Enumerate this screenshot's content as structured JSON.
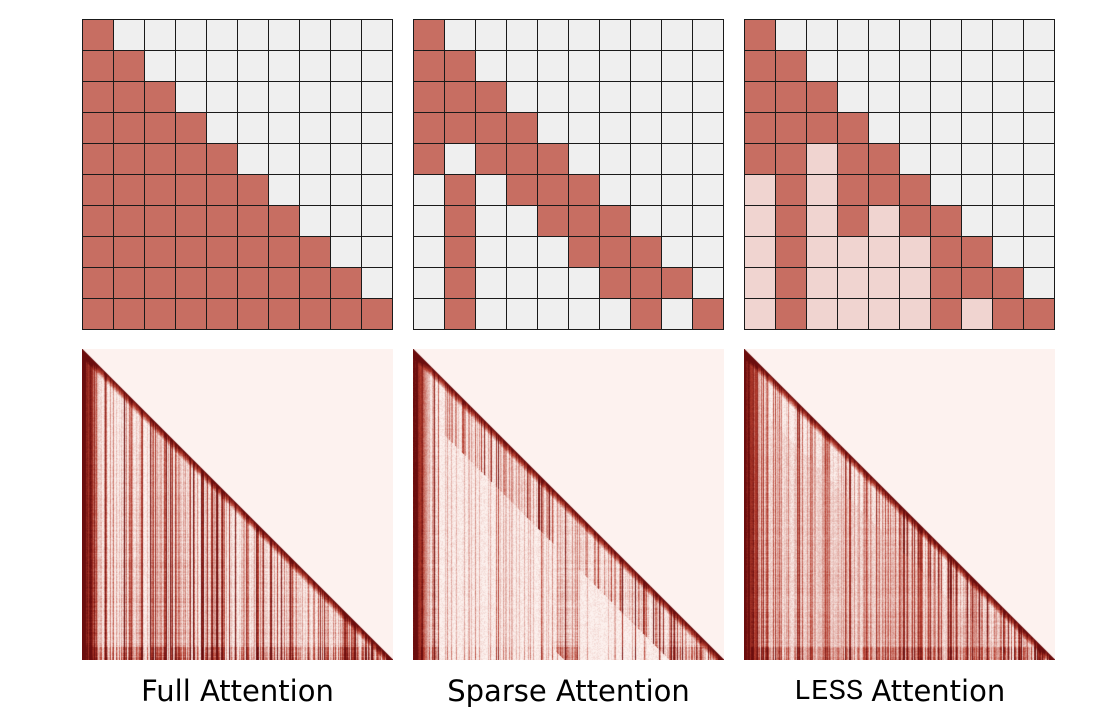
{
  "colors": {
    "active": "#c76e62",
    "partial": "#f0d4d0",
    "empty": "#efefef",
    "grid_line": "#1a1a1a",
    "heat_background": "#fdf2ef",
    "heat_dark": "#6b0d0d"
  },
  "panels": [
    {
      "id": "full",
      "caption_mono": "",
      "caption_text": "Full Attention",
      "grid": [
        "A.........",
        "AA........",
        "AAA.......",
        "AAAA......",
        "AAAAA.....",
        "AAAAAA....",
        "AAAAAAA...",
        "AAAAAAAA..",
        "AAAAAAAAA.",
        "AAAAAAAAAA"
      ]
    },
    {
      "id": "sparse",
      "caption_mono": "",
      "caption_text": "Sparse Attention",
      "grid": [
        "A.........",
        "AA........",
        "AAA.......",
        "AAAA......",
        "A.AAA.....",
        ".A.AAA....",
        ".A..AAA...",
        ".A...AAA..",
        ".A....AAA.",
        ".A.....A.A"
      ]
    },
    {
      "id": "less",
      "caption_mono": "LESS",
      "caption_text": "Attention",
      "grid": [
        "A.........",
        "AA........",
        "AAA.......",
        "AAAA......",
        "AAPAA.....",
        "PAPAAA....",
        "PAPAPAA...",
        "PAPPPPAA..",
        "PAPPPPAAA.",
        "PAPPPPAPAA"
      ]
    }
  ]
}
